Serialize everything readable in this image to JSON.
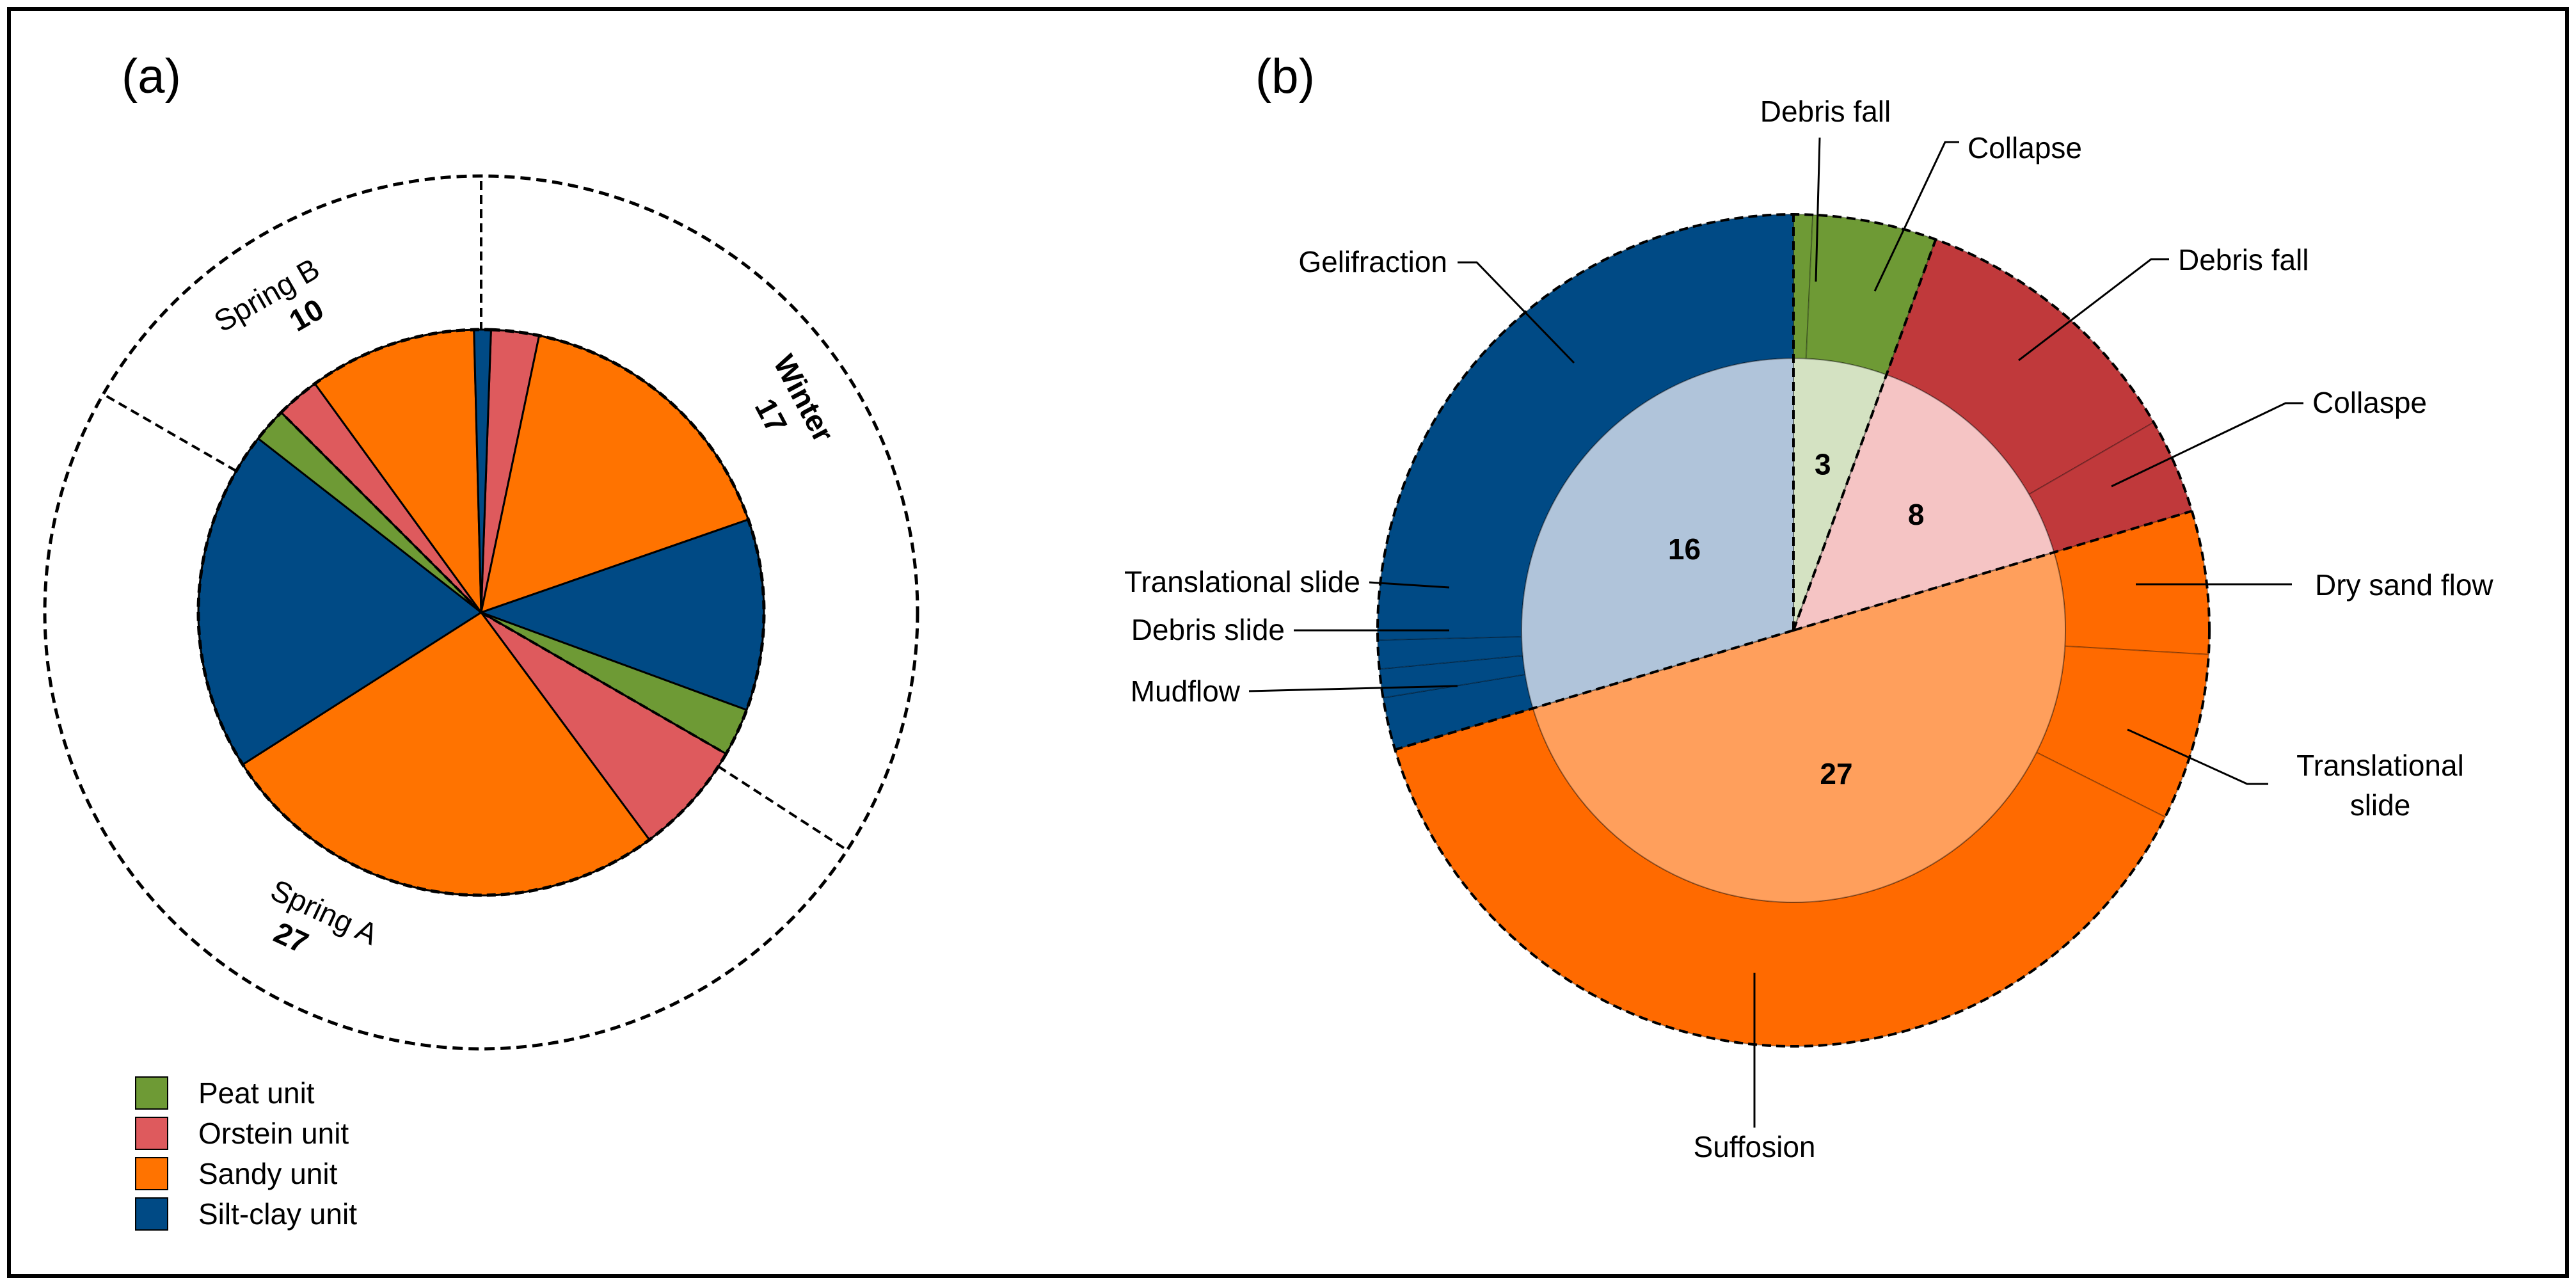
{
  "chart_data": [
    {
      "type": "pie",
      "panel_label": "(a)",
      "title": "",
      "inner_series_order": [
        "Peat unit",
        "Orstein unit",
        "Sandy unit",
        "Silt-clay unit"
      ],
      "seasons": [
        {
          "name": "Winter",
          "count": "17",
          "bold_name": true
        },
        {
          "name": "Spring A",
          "count": "27",
          "bold_name": false
        },
        {
          "name": "Spring B",
          "count": "10",
          "bold_name": false
        }
      ],
      "slices": [
        {
          "season": "Winter",
          "unit": "Orstein unit",
          "value": 1
        },
        {
          "season": "Winter",
          "unit": "Sandy unit",
          "value": 6
        },
        {
          "season": "Winter",
          "unit": "Silt-clay unit",
          "value": 4
        },
        {
          "season": "Winter",
          "unit": "Peat unit",
          "value": 1
        },
        {
          "season": "Spring A",
          "unit": "Orstein unit",
          "value": 2
        },
        {
          "season": "Spring A",
          "unit": "Sandy unit",
          "value": 8
        },
        {
          "season": "Spring A",
          "unit": "Silt-clay unit",
          "value": 6
        },
        {
          "season": "Spring A",
          "unit": "Peat unit",
          "value": 0.6
        },
        {
          "season": "Spring B",
          "unit": "Orstein unit",
          "value": 1.3
        },
        {
          "season": "Spring B",
          "unit": "Sandy unit",
          "value": 5
        },
        {
          "season": "Spring B",
          "unit": "Silt-clay unit",
          "value": 0.5
        }
      ],
      "legend": [
        {
          "label": "Peat unit",
          "color": "#6e9a35"
        },
        {
          "label": "Orstein unit",
          "color": "#de5a5d"
        },
        {
          "label": "Sandy unit",
          "color": "#ff7300"
        },
        {
          "label": "Silt-clay unit",
          "color": "#004a85"
        }
      ]
    },
    {
      "type": "pie",
      "panel_label": "(b)",
      "title": "",
      "inner": [
        {
          "unit": "Peat unit",
          "value": 3,
          "label": "3",
          "color": "#d4e2c2"
        },
        {
          "unit": "Orstein unit",
          "value": 8,
          "label": "8",
          "color": "#f5c4c4"
        },
        {
          "unit": "Sandy unit",
          "value": 27,
          "label": "27",
          "color": "#ff9f5c"
        },
        {
          "unit": "Silt-clay unit",
          "value": 16,
          "label": "16",
          "color": "#b0c4da"
        }
      ],
      "outer": [
        {
          "unit": "Peat unit",
          "process": "Debris fall",
          "value": 0.4
        },
        {
          "unit": "Peat unit",
          "process": "Collapse",
          "value": 2.6
        },
        {
          "unit": "Orstein unit",
          "process": "Debris fall",
          "value": 6
        },
        {
          "unit": "Orstein unit",
          "process": "Collaspe",
          "value": 2
        },
        {
          "unit": "Sandy unit",
          "process": "Dry sand flow",
          "value": 3
        },
        {
          "unit": "Sandy unit",
          "process": "Translational slide",
          "value": 3.5
        },
        {
          "unit": "Sandy unit",
          "process": "Suffosion",
          "value": 20.5
        },
        {
          "unit": "Silt-clay unit",
          "process": "Mudflow",
          "value": 1.1
        },
        {
          "unit": "Silt-clay unit",
          "process": "Debris slide",
          "value": 0.6
        },
        {
          "unit": "Silt-clay unit",
          "process": "Translational slide",
          "value": 0.6
        },
        {
          "unit": "Silt-clay unit",
          "process": "Gelifraction",
          "value": 13.7
        }
      ],
      "annotations": {
        "debris_fall_peat": "Debris fall",
        "collapse_peat": "Collapse",
        "debris_fall_orstein": "Debris fall",
        "collaspe_orstein": "Collaspe",
        "dry_sand_flow": "Dry sand flow",
        "translational_slide_sandy_1": "Translational",
        "translational_slide_sandy_2": "slide",
        "suffosion": "Suffosion",
        "gelifraction": "Gelifraction",
        "translational_slide_silt": "Translational slide",
        "debris_slide": "Debris slide",
        "mudflow": "Mudflow"
      },
      "unit_colors": {
        "Peat unit": "#6e9a35",
        "Orstein unit": "#c0393b",
        "Sandy unit": "#ff6a00",
        "Silt-clay unit": "#004a85"
      }
    }
  ]
}
